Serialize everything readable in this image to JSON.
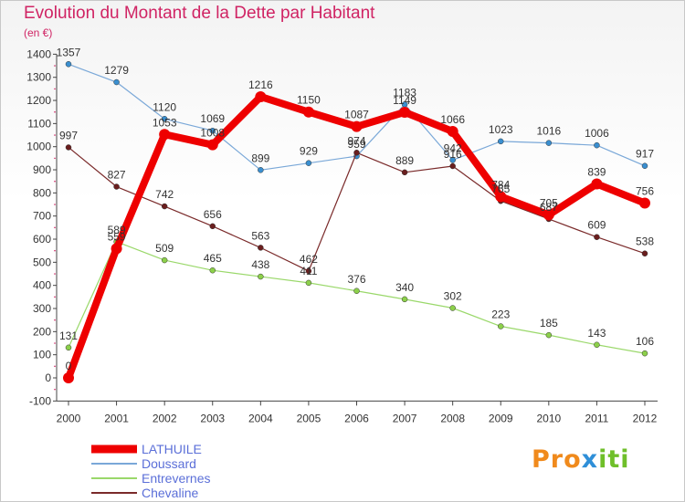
{
  "title": "Evolution du Montant de la Dette par Habitant",
  "unit": "(en €)",
  "logo": [
    "Pro",
    "x",
    "iti"
  ],
  "chart_data": {
    "type": "line",
    "x": [
      2000,
      2001,
      2002,
      2003,
      2004,
      2005,
      2006,
      2007,
      2008,
      2009,
      2010,
      2011,
      2012
    ],
    "ylim": [
      -100,
      1400
    ],
    "yticks": [
      -100,
      0,
      100,
      200,
      300,
      400,
      500,
      600,
      700,
      800,
      900,
      1000,
      1100,
      1200,
      1300,
      1400
    ],
    "grid": false,
    "legend": "bottom-left",
    "series": [
      {
        "name": "Doussard",
        "color": "#7aa8d8",
        "marker": "#3a8fd0",
        "width": 1.2,
        "values": [
          1357,
          1279,
          1120,
          1069,
          899,
          929,
          959,
          1183,
          942,
          1023,
          1016,
          1006,
          917
        ],
        "labels": [
          "1357",
          "1279",
          "1120",
          "1069",
          "899",
          "929",
          "959",
          "1183",
          "942",
          "1023",
          "1016",
          "1006",
          "917"
        ]
      },
      {
        "name": "Entrevernes",
        "color": "#9ad86a",
        "marker": "#8cd04a",
        "width": 1.2,
        "values": [
          131,
          589,
          509,
          465,
          438,
          411,
          376,
          340,
          302,
          223,
          185,
          143,
          106
        ],
        "labels": [
          "131",
          "589",
          "509",
          "465",
          "438",
          "411",
          "376",
          "340",
          "302",
          "223",
          "185",
          "143",
          "106"
        ]
      },
      {
        "name": "Chevaline",
        "color": "#7a2a2a",
        "marker": "#6a1e1e",
        "width": 1.2,
        "values": [
          997,
          827,
          742,
          656,
          563,
          462,
          974,
          889,
          916,
          765,
          687,
          609,
          538
        ],
        "labels": [
          "997",
          "827",
          "742",
          "656",
          "563",
          "462",
          "974",
          "889",
          "916",
          "765",
          "687",
          "609",
          "538"
        ]
      },
      {
        "name": "LATHUILE",
        "color": "#ee0000",
        "marker": "#ee0000",
        "width": 8,
        "values": [
          0,
          559,
          1053,
          1008,
          1216,
          1150,
          1087,
          1149,
          1066,
          784,
          705,
          839,
          756
        ],
        "labels": [
          "0",
          "559",
          "1053",
          "1008",
          "1216",
          "1150",
          "1087",
          "1149",
          "1066",
          "784",
          "705",
          "839",
          "756"
        ]
      }
    ],
    "legend_order": [
      "LATHUILE",
      "Doussard",
      "Entrevernes",
      "Chevaline"
    ]
  }
}
